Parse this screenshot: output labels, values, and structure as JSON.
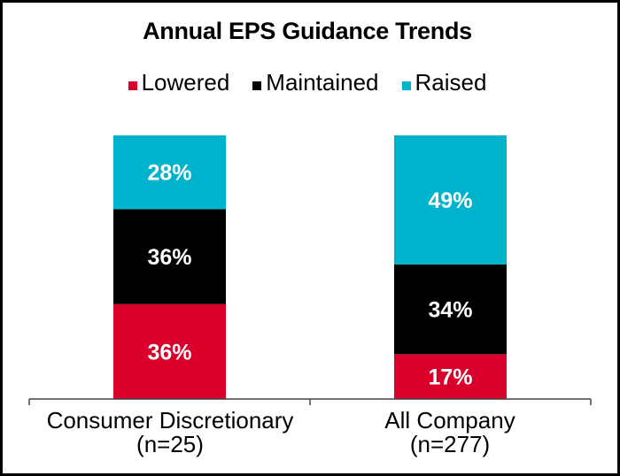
{
  "chart_data": {
    "type": "bar",
    "stacked": true,
    "title": "Annual EPS Guidance Trends",
    "xlabel": "",
    "ylabel": "",
    "ylim": [
      0,
      100
    ],
    "grid": false,
    "legend_position": "top",
    "categories": [
      "Consumer Discretionary",
      "All Company"
    ],
    "category_subtitles": [
      "(n=25)",
      "(n=277)"
    ],
    "series": [
      {
        "name": "Lowered",
        "color": "#D9002B",
        "values": [
          36,
          17
        ],
        "labels": [
          "36%",
          "17%"
        ]
      },
      {
        "name": "Maintained",
        "color": "#000000",
        "values": [
          36,
          34
        ],
        "labels": [
          "36%",
          "34%"
        ]
      },
      {
        "name": "Raised",
        "color": "#00B3CC",
        "values": [
          28,
          49
        ],
        "labels": [
          "28%",
          "49%"
        ]
      }
    ]
  }
}
